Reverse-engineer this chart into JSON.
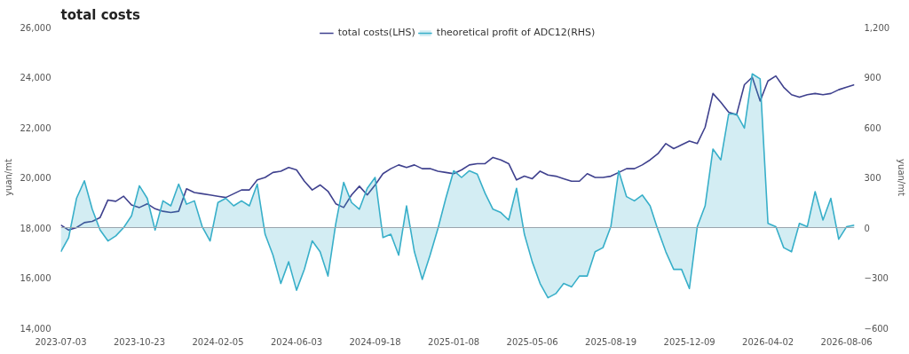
{
  "chart_data": {
    "type": "line",
    "title": "total costs",
    "ylabel": "yuan/mt",
    "y2label": "yuan/mt",
    "categories": [
      "2023-07-03",
      null,
      null,
      null,
      null,
      null,
      null,
      null,
      null,
      null,
      "2023-10-23",
      null,
      null,
      null,
      null,
      null,
      null,
      null,
      null,
      null,
      "2024-02-05",
      null,
      null,
      null,
      null,
      null,
      null,
      null,
      null,
      null,
      "2024-06-03",
      null,
      null,
      null,
      null,
      null,
      null,
      null,
      null,
      null,
      "2024-09-18",
      null,
      null,
      null,
      null,
      null,
      null,
      null,
      null,
      null,
      "2025-01-08",
      null,
      null,
      null,
      null,
      null,
      null,
      null,
      null,
      null,
      "2025-05-06",
      null,
      null,
      null,
      null,
      null,
      null,
      null,
      null,
      null,
      "2025-08-19",
      null,
      null,
      null,
      null,
      null,
      null,
      null,
      null,
      null,
      "2025-12-09",
      null,
      null,
      null,
      null,
      null,
      null,
      null,
      null,
      null,
      "2026-04-02",
      null,
      null,
      null,
      null,
      null,
      null,
      null,
      null,
      null,
      "2026-08-06",
      null
    ],
    "series": [
      {
        "name": "total costs(LHS)",
        "color": "#3f418e",
        "values": [
          18100,
          17900,
          18000,
          18200,
          18250,
          18400,
          19100,
          19050,
          19250,
          18900,
          18800,
          18950,
          18750,
          18650,
          18600,
          18650,
          19550,
          19400,
          19350,
          19300,
          19250,
          19200,
          19350,
          19500,
          19500,
          19900,
          20000,
          20200,
          20250,
          20400,
          20300,
          19850,
          19500,
          19700,
          19450,
          18950,
          18800,
          19300,
          19650,
          19300,
          19700,
          20150,
          20350,
          20500,
          20400,
          20500,
          20350,
          20350,
          20250,
          20200,
          20150,
          20300,
          20500,
          20550,
          20550,
          20800,
          20700,
          20550,
          19900,
          20050,
          19950,
          20250,
          20100,
          20050,
          19950,
          19850,
          19850,
          20150,
          20000,
          20000,
          20050,
          20200,
          20350,
          20350,
          20500,
          20700,
          20950,
          21350,
          21150,
          21300,
          21450,
          21350,
          22000,
          23350,
          23000,
          22600,
          22500,
          23700,
          24000,
          23050,
          23850,
          24050,
          23600,
          23300,
          23200,
          23300,
          23350,
          23300,
          23350,
          23500,
          23600,
          23700
        ]
      },
      {
        "name": "theoretical profit of ADC12(RHS)",
        "type": "area",
        "axis": "y2",
        "color": "#38afc9",
        "values": [
          -145,
          -60,
          175,
          280,
          110,
          -15,
          -80,
          -50,
          0,
          70,
          250,
          175,
          -15,
          160,
          130,
          260,
          140,
          160,
          5,
          -80,
          150,
          175,
          130,
          160,
          130,
          260,
          -40,
          -165,
          -335,
          -205,
          -375,
          -250,
          -80,
          -145,
          -290,
          25,
          270,
          150,
          110,
          235,
          300,
          -60,
          -40,
          -165,
          130,
          -145,
          -310,
          -165,
          -5,
          175,
          340,
          300,
          340,
          320,
          205,
          110,
          90,
          45,
          235,
          -40,
          -205,
          -335,
          -420,
          -395,
          -335,
          -355,
          -290,
          -290,
          -145,
          -120,
          5,
          340,
          185,
          160,
          195,
          130,
          -15,
          -145,
          -250,
          -250,
          -365,
          5,
          130,
          470,
          405,
          680,
          680,
          595,
          920,
          890,
          25,
          5,
          -120,
          -145,
          25,
          5,
          215,
          45,
          175,
          -70,
          5,
          15
        ]
      }
    ],
    "ylim": [
      14000,
      26000
    ],
    "yticks": [
      {
        "value": 14000,
        "label": "14,000"
      },
      {
        "value": 16000,
        "label": "16,000"
      },
      {
        "value": 18000,
        "label": "18,000"
      },
      {
        "value": 20000,
        "label": "20,000"
      },
      {
        "value": 22000,
        "label": "22,000"
      },
      {
        "value": 24000,
        "label": "24,000"
      },
      {
        "value": 26000,
        "label": "26,000"
      }
    ],
    "y2lim": [
      -600,
      1200
    ],
    "y2ticks": [
      -600,
      -300,
      0,
      300,
      600,
      900,
      {
        "value": 1200,
        "label": "1,200"
      }
    ],
    "ref_lines": [
      {
        "axis": "y2",
        "value": 0,
        "color": "#9aa4ad"
      }
    ],
    "grid": false,
    "legend": "top",
    "marker": "none",
    "line_style": "solid"
  }
}
